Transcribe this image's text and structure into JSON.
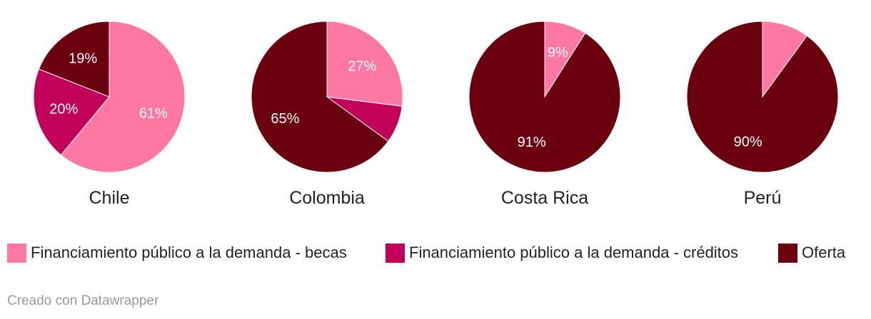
{
  "chart_data": {
    "type": "pie",
    "series_names": [
      "Financiamiento público a la demanda - becas",
      "Financiamiento público a la demanda - créditos",
      "Oferta"
    ],
    "colors": [
      "#ff78a4",
      "#c2005a",
      "#6b000e"
    ],
    "charts": [
      {
        "title": "Chile",
        "values": [
          61,
          20,
          19
        ],
        "labels": [
          "61%",
          "20%",
          "19%"
        ]
      },
      {
        "title": "Colombia",
        "values": [
          27,
          8,
          65
        ],
        "labels": [
          "27%",
          "",
          "65%"
        ]
      },
      {
        "title": "Costa Rica",
        "values": [
          9,
          0,
          91
        ],
        "labels": [
          "9%",
          "",
          "91%"
        ]
      },
      {
        "title": "Perú",
        "values": [
          10,
          0,
          90
        ],
        "labels": [
          "",
          "",
          "90%"
        ]
      }
    ],
    "legend_position": "bottom"
  },
  "legend": {
    "items": [
      {
        "label": "Financiamiento público a la demanda - becas",
        "color": "#ff78a4"
      },
      {
        "label": "Financiamiento público a la demanda - créditos",
        "color": "#c2005a"
      },
      {
        "label": "Oferta",
        "color": "#6b000e"
      }
    ]
  },
  "footer": {
    "credit": "Creado con Datawrapper"
  }
}
